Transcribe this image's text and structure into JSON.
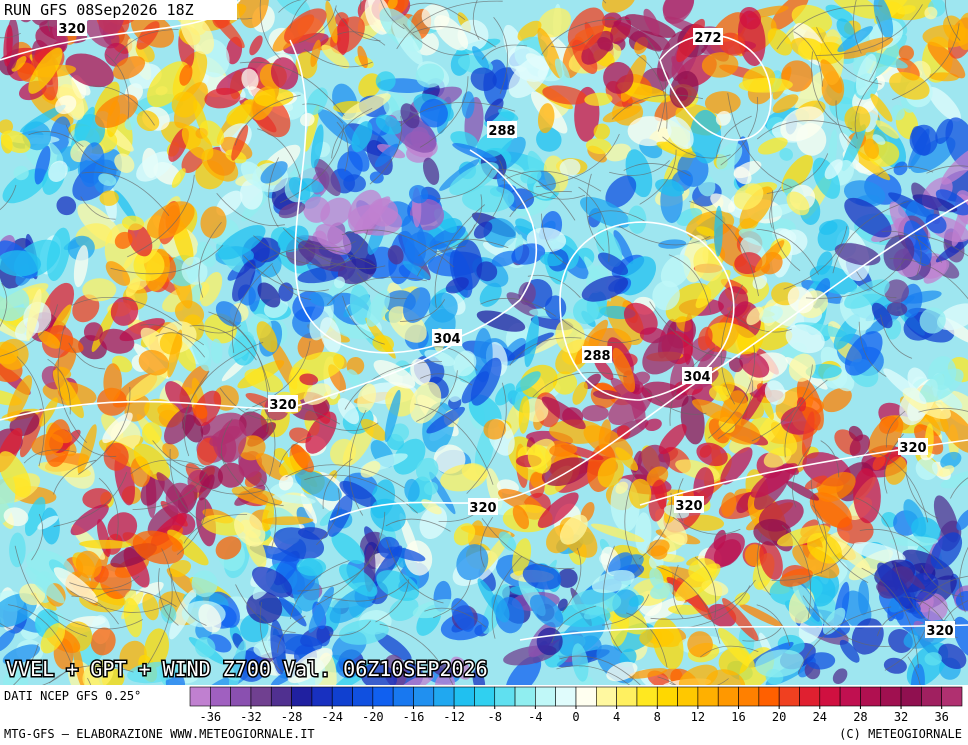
{
  "header": {
    "run": "RUN GFS 08Sep2026 18Z"
  },
  "map": {
    "title": "VVEL + GPT + WIND Z700 Val. 06Z10SEP2026",
    "contour_labels": [
      320,
      272,
      288,
      304,
      288,
      304,
      320,
      320,
      320,
      320,
      320
    ]
  },
  "colorbar": {
    "source": "DATI NCEP GFS 0.25°",
    "range": [
      -38,
      38
    ],
    "ticks": [
      -36,
      -32,
      -28,
      -24,
      -20,
      -16,
      -12,
      -8,
      -4,
      0,
      4,
      8,
      12,
      16,
      20,
      24,
      28,
      32,
      36
    ],
    "colors": [
      "#c080d0",
      "#a060c0",
      "#8a50b0",
      "#704090",
      "#503090",
      "#2020a0",
      "#1830c0",
      "#1040d0",
      "#1050e0",
      "#1060f0",
      "#1878f0",
      "#2090f0",
      "#20a8f0",
      "#20c0f0",
      "#30d0f0",
      "#60e0f0",
      "#90eef0",
      "#c0f8f8",
      "#e0fcfc",
      "#fffff0",
      "#fff8a0",
      "#fff060",
      "#ffe820",
      "#ffd800",
      "#ffc800",
      "#ffb000",
      "#ff9800",
      "#ff8000",
      "#ff6000",
      "#f04020",
      "#e02030",
      "#d01040",
      "#c01050",
      "#b01050",
      "#a01050",
      "#901050",
      "#a02060",
      "#b03070"
    ]
  },
  "footer": {
    "left": "MTG-GFS — ELABORAZIONE WWW.METEOGIORNALE.IT",
    "right": "(C) METEOGIORNALE"
  }
}
